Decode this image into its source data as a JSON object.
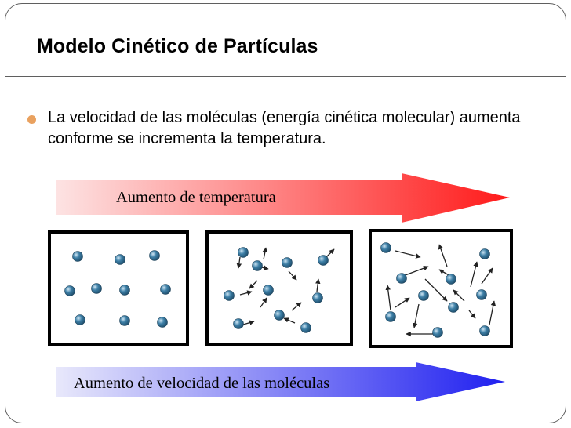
{
  "slide": {
    "title": "Modelo Cinético de Partículas",
    "bullet": "La velocidad de las moléculas (energía cinética molecular) aumenta conforme se incrementa la temperatura."
  },
  "arrows": {
    "temperature_label": "Aumento de temperatura",
    "temperature_colors": [
      "#fde3e3",
      "#ff1a1a"
    ],
    "velocity_label": "Aumento de velocidad de las moléculas",
    "velocity_colors": [
      "#e8e8fb",
      "#2020f0"
    ]
  },
  "diagram": {
    "particle_color": "#3d7fa6",
    "boxes": [
      {
        "name": "low-temperature-box"
      },
      {
        "name": "medium-temperature-box"
      },
      {
        "name": "high-temperature-box"
      }
    ]
  }
}
